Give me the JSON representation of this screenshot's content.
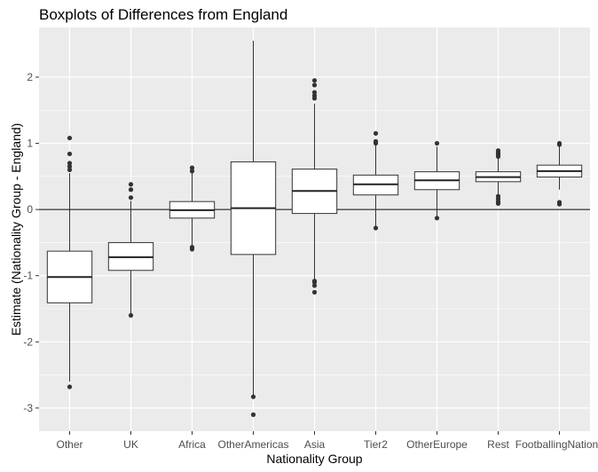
{
  "chart_data": {
    "type": "boxplot",
    "title": "Boxplots of Differences from England",
    "xlabel": "Nationality Group",
    "ylabel": "Estimate (Nationality Group - England)",
    "ylim": [
      -3.35,
      2.75
    ],
    "yticks": [
      -3,
      -2,
      -1,
      0,
      1,
      2
    ],
    "reference_line": 0,
    "grid": true,
    "panel_background": "#ebebeb",
    "categories": [
      "Other",
      "UK",
      "Africa",
      "OtherAmericas",
      "Asia",
      "Tier2",
      "OtherEurope",
      "Rest",
      "FootballingNations"
    ],
    "boxes": [
      {
        "whisker_low": -2.6,
        "q1": -1.41,
        "median": -1.02,
        "q3": -0.63,
        "whisker_high": 0.55,
        "outliers": [
          -2.68,
          0.6,
          0.65,
          0.7,
          0.84,
          1.08
        ]
      },
      {
        "whisker_low": -1.57,
        "q1": -0.92,
        "median": -0.72,
        "q3": -0.5,
        "whisker_high": 0.13,
        "outliers": [
          -1.6,
          0.18,
          0.3,
          0.38
        ]
      },
      {
        "whisker_low": -0.55,
        "q1": -0.13,
        "median": -0.01,
        "q3": 0.12,
        "whisker_high": 0.55,
        "outliers": [
          -0.6,
          -0.57,
          0.58,
          0.63
        ]
      },
      {
        "whisker_low": -2.8,
        "q1": -0.68,
        "median": 0.02,
        "q3": 0.72,
        "whisker_high": 2.55,
        "outliers": [
          -3.1,
          -2.83
        ]
      },
      {
        "whisker_low": -1.05,
        "q1": -0.06,
        "median": 0.28,
        "q3": 0.61,
        "whisker_high": 1.6,
        "outliers": [
          -1.25,
          -1.15,
          -1.1,
          -1.08,
          1.68,
          1.72,
          1.77,
          1.88,
          1.95
        ]
      },
      {
        "whisker_low": -0.25,
        "q1": 0.22,
        "median": 0.38,
        "q3": 0.52,
        "whisker_high": 0.97,
        "outliers": [
          -0.28,
          1.0,
          1.03,
          1.15
        ]
      },
      {
        "whisker_low": -0.1,
        "q1": 0.3,
        "median": 0.44,
        "q3": 0.57,
        "whisker_high": 0.95,
        "outliers": [
          -0.13,
          1.0
        ]
      },
      {
        "whisker_low": 0.22,
        "q1": 0.42,
        "median": 0.49,
        "q3": 0.57,
        "whisker_high": 0.78,
        "outliers": [
          0.09,
          0.12,
          0.16,
          0.2,
          0.8,
          0.83,
          0.86,
          0.89
        ]
      },
      {
        "whisker_low": 0.3,
        "q1": 0.49,
        "median": 0.58,
        "q3": 0.67,
        "whisker_high": 0.95,
        "outliers": [
          0.08,
          0.11,
          0.98,
          1.0
        ]
      }
    ]
  }
}
